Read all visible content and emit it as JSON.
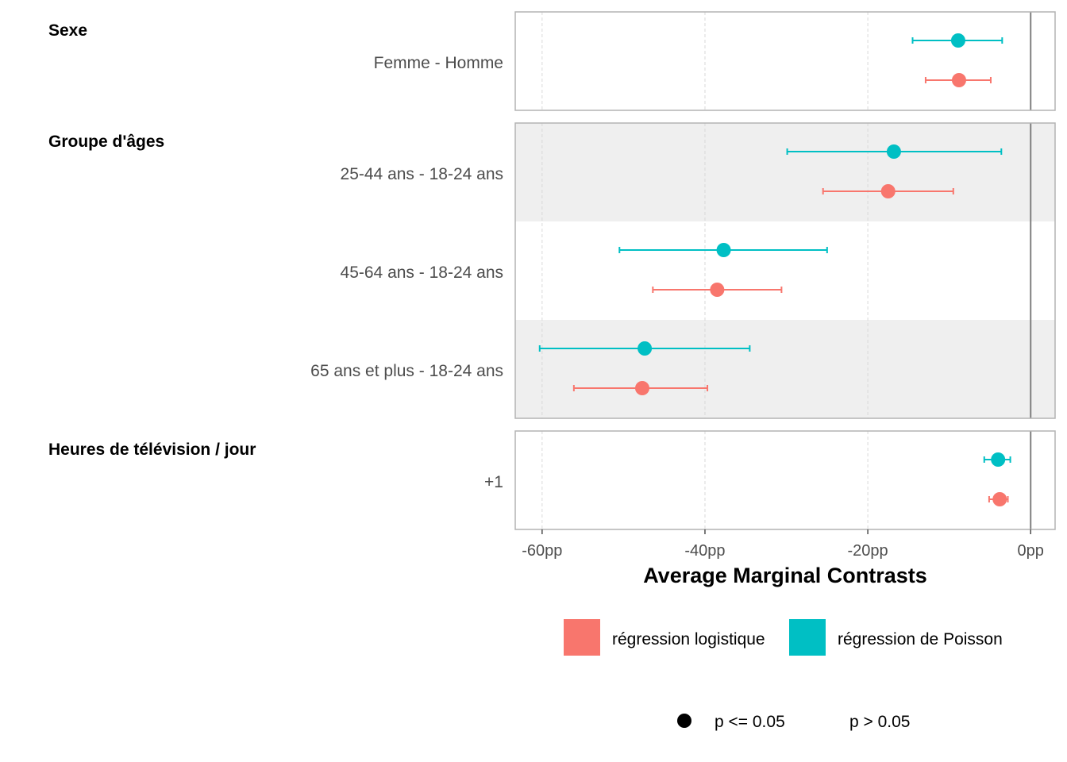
{
  "chart_data": {
    "type": "scatter",
    "xlabel": "Average Marginal Contrasts",
    "xlim": [
      -63.3,
      3.0
    ],
    "x_ticks": [
      {
        "value": -60,
        "label": "-60pp"
      },
      {
        "value": -40,
        "label": "-40pp"
      },
      {
        "value": -20,
        "label": "-20pp"
      },
      {
        "value": 0,
        "label": "0pp"
      }
    ],
    "reference_line": 0,
    "grid": true,
    "facets": [
      {
        "title": "Sexe",
        "rows": [
          {
            "label": "Femme - Homme",
            "shaded": false,
            "points": [
              {
                "series": "poisson",
                "estimate": -8.9,
                "low": -14.5,
                "high": -3.5
              },
              {
                "series": "logistic",
                "estimate": -8.8,
                "low": -12.9,
                "high": -4.9
              }
            ]
          }
        ]
      },
      {
        "title": "Groupe d'âges",
        "rows": [
          {
            "label": "25-44 ans - 18-24 ans",
            "shaded": true,
            "points": [
              {
                "series": "poisson",
                "estimate": -16.8,
                "low": -29.9,
                "high": -3.6
              },
              {
                "series": "logistic",
                "estimate": -17.5,
                "low": -25.5,
                "high": -9.5
              }
            ]
          },
          {
            "label": "45-64 ans - 18-24 ans",
            "shaded": false,
            "points": [
              {
                "series": "poisson",
                "estimate": -37.7,
                "low": -50.5,
                "high": -25.0
              },
              {
                "series": "logistic",
                "estimate": -38.5,
                "low": -46.4,
                "high": -30.6
              }
            ]
          },
          {
            "label": "65 ans et plus - 18-24 ans",
            "shaded": true,
            "points": [
              {
                "series": "poisson",
                "estimate": -47.4,
                "low": -60.3,
                "high": -34.5
              },
              {
                "series": "logistic",
                "estimate": -47.7,
                "low": -56.1,
                "high": -39.7
              }
            ]
          }
        ]
      },
      {
        "title": "Heures de télévision / jour",
        "rows": [
          {
            "label": "+1",
            "shaded": false,
            "points": [
              {
                "series": "poisson",
                "estimate": -4.0,
                "low": -5.7,
                "high": -2.5
              },
              {
                "series": "logistic",
                "estimate": -3.8,
                "low": -5.1,
                "high": -2.8
              }
            ]
          }
        ]
      }
    ],
    "legend": {
      "position": "bottom",
      "series": [
        {
          "key": "logistic",
          "name": "régression logistique",
          "color": "#F8766D"
        },
        {
          "key": "poisson",
          "name": "régression de Poisson",
          "color": "#00BFC4"
        }
      ],
      "significance": [
        {
          "label": "p <= 0.05",
          "filled": true
        },
        {
          "label": "p > 0.05",
          "filled": false
        }
      ]
    }
  }
}
